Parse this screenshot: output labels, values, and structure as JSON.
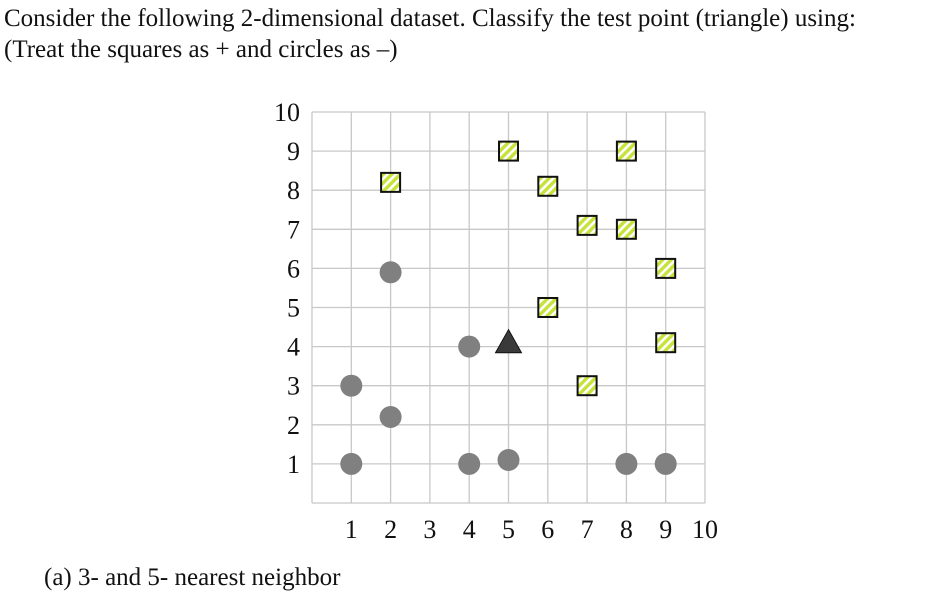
{
  "question": {
    "line1": "Consider the following 2-dimensional dataset. Classify the test point (triangle) using:",
    "line2": "(Treat the squares as + and circles as –)"
  },
  "part_a": "(a) 3- and 5- nearest neighbor",
  "colors": {
    "square_fill": "#c7e23a",
    "square_stripe": "#ffffff",
    "square_stroke": "#111111",
    "circle_fill": "#808080",
    "triangle_fill": "#3a3a3a",
    "grid": "#c8c8c8"
  },
  "chart_data": {
    "type": "scatter",
    "xlim": [
      0,
      10
    ],
    "ylim": [
      0,
      10
    ],
    "x_ticks": [
      "1",
      "2",
      "3",
      "4",
      "5",
      "6",
      "7",
      "8",
      "9",
      "10"
    ],
    "y_ticks": [
      "1",
      "2",
      "3",
      "4",
      "5",
      "6",
      "7",
      "8",
      "9",
      "10"
    ],
    "grid": true,
    "series": [
      {
        "marker": "square",
        "points": [
          [
            2,
            8.2
          ],
          [
            5,
            9
          ],
          [
            6,
            8.1
          ],
          [
            7,
            7.1
          ],
          [
            8,
            9
          ],
          [
            8,
            7
          ],
          [
            9,
            6
          ],
          [
            6,
            5
          ],
          [
            9,
            4.1
          ],
          [
            7,
            3
          ]
        ]
      },
      {
        "marker": "circle",
        "points": [
          [
            2,
            5.9
          ],
          [
            4,
            4
          ],
          [
            1,
            3
          ],
          [
            2,
            2.2
          ],
          [
            1,
            1
          ],
          [
            4,
            1
          ],
          [
            5,
            1.1
          ],
          [
            8,
            1
          ],
          [
            9,
            1
          ]
        ]
      },
      {
        "marker": "triangle",
        "points": [
          [
            5,
            4.1
          ]
        ]
      }
    ]
  }
}
